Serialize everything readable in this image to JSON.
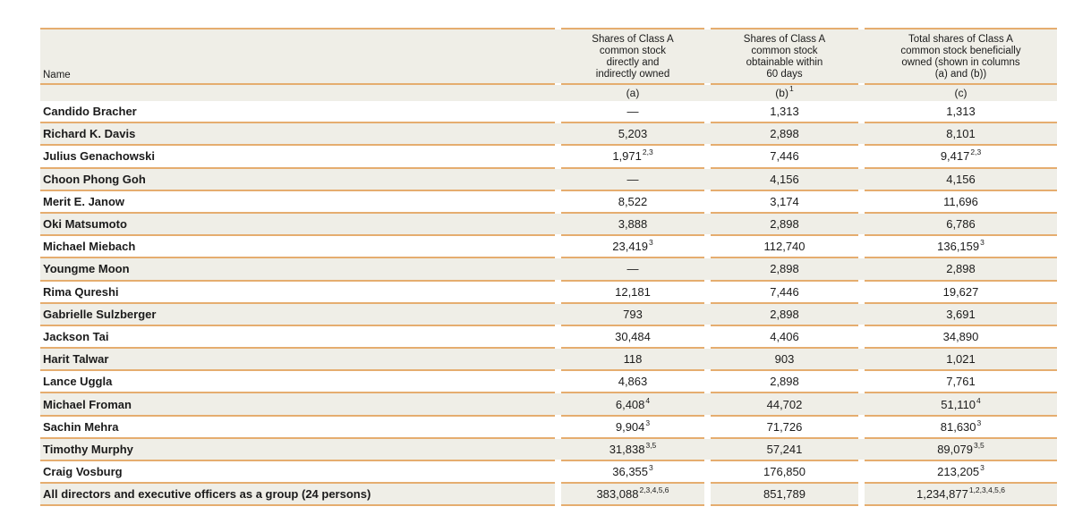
{
  "table": {
    "title_semantic": "beneficial-ownership-table",
    "name_header": "Name",
    "columns": [
      {
        "lines": [
          "Shares of Class A",
          "common stock",
          "directly and",
          "indirectly owned"
        ],
        "sub": "(a)",
        "sub_sup": ""
      },
      {
        "lines": [
          "Shares of Class A",
          "common stock",
          "obtainable within",
          "60 days"
        ],
        "sub": "(b)",
        "sub_sup": "1"
      },
      {
        "lines": [
          "Total shares of Class A",
          "common stock beneficially",
          "owned (shown in columns",
          "(a) and (b))"
        ],
        "sub": "(c)",
        "sub_sup": ""
      }
    ],
    "rows": [
      {
        "name": "Candido Bracher",
        "a": "—",
        "a_sup": "",
        "b": "1,313",
        "b_sup": "",
        "c": "1,313",
        "c_sup": ""
      },
      {
        "name": "Richard K. Davis",
        "a": "5,203",
        "a_sup": "",
        "b": "2,898",
        "b_sup": "",
        "c": "8,101",
        "c_sup": ""
      },
      {
        "name": "Julius Genachowski",
        "a": "1,971",
        "a_sup": "2,3",
        "b": "7,446",
        "b_sup": "",
        "c": "9,417",
        "c_sup": "2,3"
      },
      {
        "name": "Choon Phong Goh",
        "a": "—",
        "a_sup": "",
        "b": "4,156",
        "b_sup": "",
        "c": "4,156",
        "c_sup": ""
      },
      {
        "name": "Merit E. Janow",
        "a": "8,522",
        "a_sup": "",
        "b": "3,174",
        "b_sup": "",
        "c": "11,696",
        "c_sup": ""
      },
      {
        "name": "Oki Matsumoto",
        "a": "3,888",
        "a_sup": "",
        "b": "2,898",
        "b_sup": "",
        "c": "6,786",
        "c_sup": ""
      },
      {
        "name": "Michael Miebach",
        "a": "23,419",
        "a_sup": "3",
        "b": "112,740",
        "b_sup": "",
        "c": "136,159",
        "c_sup": "3"
      },
      {
        "name": "Youngme Moon",
        "a": "—",
        "a_sup": "",
        "b": "2,898",
        "b_sup": "",
        "c": "2,898",
        "c_sup": ""
      },
      {
        "name": "Rima Qureshi",
        "a": "12,181",
        "a_sup": "",
        "b": "7,446",
        "b_sup": "",
        "c": "19,627",
        "c_sup": ""
      },
      {
        "name": "Gabrielle Sulzberger",
        "a": "793",
        "a_sup": "",
        "b": "2,898",
        "b_sup": "",
        "c": "3,691",
        "c_sup": ""
      },
      {
        "name": "Jackson Tai",
        "a": "30,484",
        "a_sup": "",
        "b": "4,406",
        "b_sup": "",
        "c": "34,890",
        "c_sup": ""
      },
      {
        "name": "Harit Talwar",
        "a": "118",
        "a_sup": "",
        "b": "903",
        "b_sup": "",
        "c": "1,021",
        "c_sup": ""
      },
      {
        "name": "Lance Uggla",
        "a": "4,863",
        "a_sup": "",
        "b": "2,898",
        "b_sup": "",
        "c": "7,761",
        "c_sup": ""
      },
      {
        "name": "Michael Froman",
        "a": "6,408",
        "a_sup": "4",
        "b": "44,702",
        "b_sup": "",
        "c": "51,110",
        "c_sup": "4"
      },
      {
        "name": "Sachin Mehra",
        "a": "9,904",
        "a_sup": "3",
        "b": "71,726",
        "b_sup": "",
        "c": "81,630",
        "c_sup": "3"
      },
      {
        "name": "Timothy Murphy",
        "a": "31,838",
        "a_sup": "3,5",
        "b": "57,241",
        "b_sup": "",
        "c": "89,079",
        "c_sup": "3,5"
      },
      {
        "name": "Craig Vosburg",
        "a": "36,355",
        "a_sup": "3",
        "b": "176,850",
        "b_sup": "",
        "c": "213,205",
        "c_sup": "3"
      },
      {
        "name": "All directors and executive officers as a group (24 persons)",
        "a": "383,088",
        "a_sup": "2,3,4,5,6",
        "b": "851,789",
        "b_sup": "",
        "c": "1,234,877",
        "c_sup": "1,2,3,4,5,6",
        "is_total": true
      }
    ],
    "colors": {
      "accent_line": "#e5ad6f",
      "row_beige": "#efeee7",
      "text": "#1b1b1b",
      "page_background": "#ffffff"
    }
  }
}
